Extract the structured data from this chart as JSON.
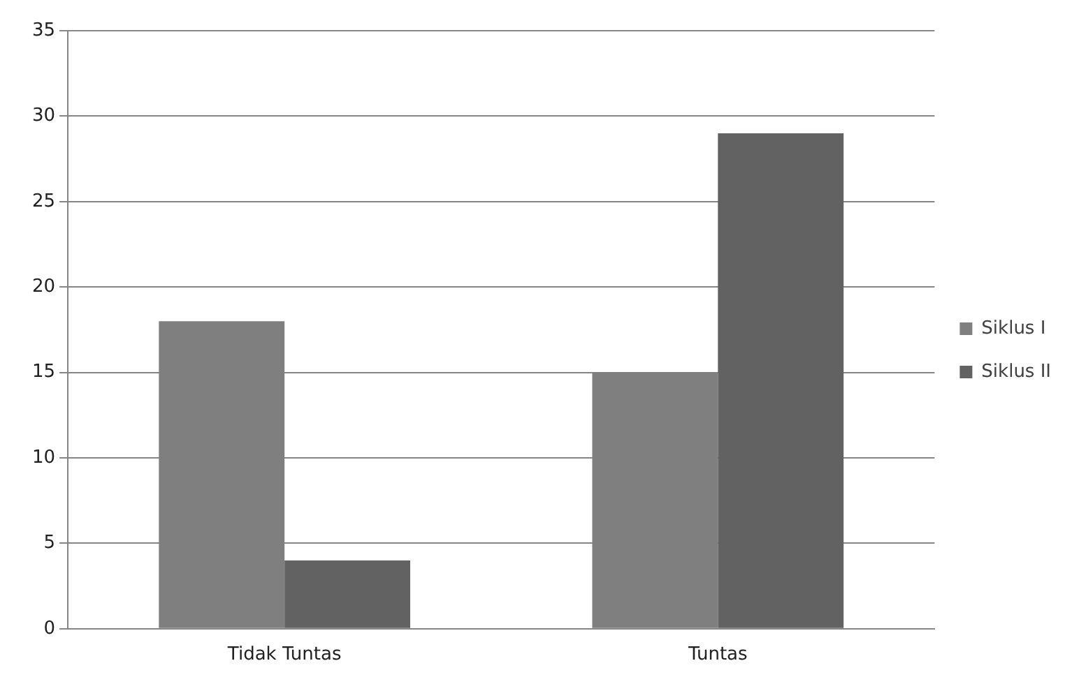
{
  "chart_data": {
    "type": "bar",
    "categories": [
      "Tidak Tuntas",
      "Tuntas"
    ],
    "series": [
      {
        "name": "Siklus I",
        "color": "#7f7f7f",
        "values": [
          18,
          15
        ]
      },
      {
        "name": "Siklus II",
        "color": "#626262",
        "values": [
          4,
          29
        ]
      }
    ],
    "ylim": [
      0,
      35
    ],
    "yticks": [
      0,
      5,
      10,
      15,
      20,
      25,
      30,
      35
    ],
    "grid": "y",
    "legend": "right"
  }
}
